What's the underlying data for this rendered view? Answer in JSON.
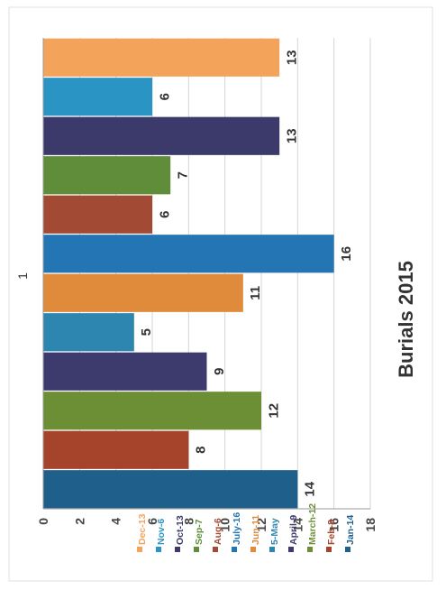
{
  "chart_data": {
    "type": "bar",
    "orientation": "rotated-90-clockwise",
    "title": "Burials 2015",
    "category_label": "1",
    "ylim": [
      0,
      18
    ],
    "yticks": [
      0,
      2,
      4,
      6,
      8,
      10,
      12,
      14,
      16,
      18
    ],
    "grid": true,
    "legend_position": "right",
    "series": [
      {
        "name": "Jan-14",
        "value": 14,
        "color": "#1f5f8b"
      },
      {
        "name": "Feb-8",
        "value": 8,
        "color": "#a5442a"
      },
      {
        "name": "March-12",
        "value": 12,
        "color": "#6c8f35"
      },
      {
        "name": "April-9",
        "value": 9,
        "color": "#3d3a6e"
      },
      {
        "name": "5-May",
        "value": 5,
        "color": "#2c86b0"
      },
      {
        "name": "Jun-11",
        "value": 11,
        "color": "#e08a3c"
      },
      {
        "name": "July-16",
        "value": 16,
        "color": "#2375b4"
      },
      {
        "name": "Aug-6",
        "value": 6,
        "color": "#a34a35"
      },
      {
        "name": "Sep-7",
        "value": 7,
        "color": "#5f8d3a"
      },
      {
        "name": "Oct-13",
        "value": 13,
        "color": "#3b3a6b"
      },
      {
        "name": "Nov-6",
        "value": 6,
        "color": "#2a95c4"
      },
      {
        "name": "Dec-13",
        "value": 13,
        "color": "#f4a35a"
      }
    ]
  }
}
